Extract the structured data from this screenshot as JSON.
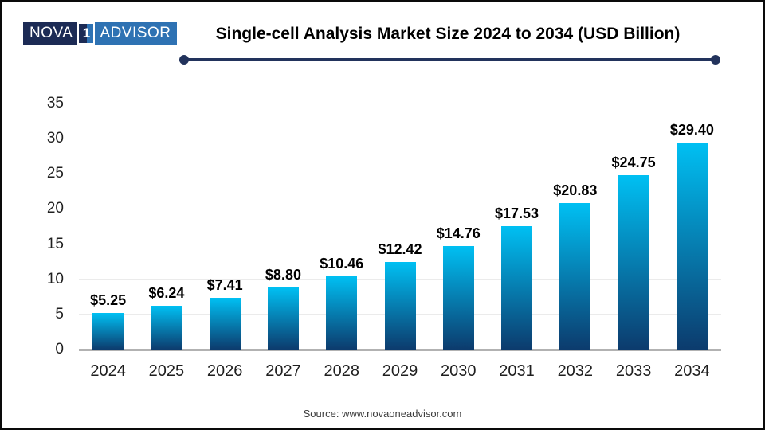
{
  "header": {
    "logo": {
      "nova": "NOVA",
      "one": "1",
      "advisor": "ADVISOR"
    },
    "title": "Single-cell Analysis Market Size 2024 to 2034 (USD Billion)"
  },
  "chart_data": {
    "type": "bar",
    "title": "Single-cell Analysis Market Size 2024 to 2034 (USD Billion)",
    "categories": [
      "2024",
      "2025",
      "2026",
      "2027",
      "2028",
      "2029",
      "2030",
      "2031",
      "2032",
      "2033",
      "2034"
    ],
    "values": [
      5.25,
      6.24,
      7.41,
      8.8,
      10.46,
      12.42,
      14.76,
      17.53,
      20.83,
      24.75,
      29.4
    ],
    "data_labels": [
      "$5.25",
      "$6.24",
      "$7.41",
      "$8.80",
      "$10.46",
      "$12.42",
      "$14.76",
      "$17.53",
      "$20.83",
      "$24.75",
      "$29.40"
    ],
    "unit": "USD Billion",
    "xlabel": "",
    "ylabel": "",
    "ylim": [
      0,
      35
    ],
    "yticks": [
      0,
      5,
      10,
      15,
      20,
      25,
      30,
      35
    ],
    "grid": true,
    "legend": "none",
    "bar_color_top": "#00c0f3",
    "bar_color_bottom": "#0c3b6d"
  },
  "footer": {
    "source": "Source: www.novaoneadvisor.com"
  },
  "colors": {
    "accent_navy": "#22335c",
    "logo_navy": "#1c2b55",
    "logo_blue": "#2e72b3",
    "gridline": "#ebebeb",
    "axis_line": "#b2b2b2"
  }
}
